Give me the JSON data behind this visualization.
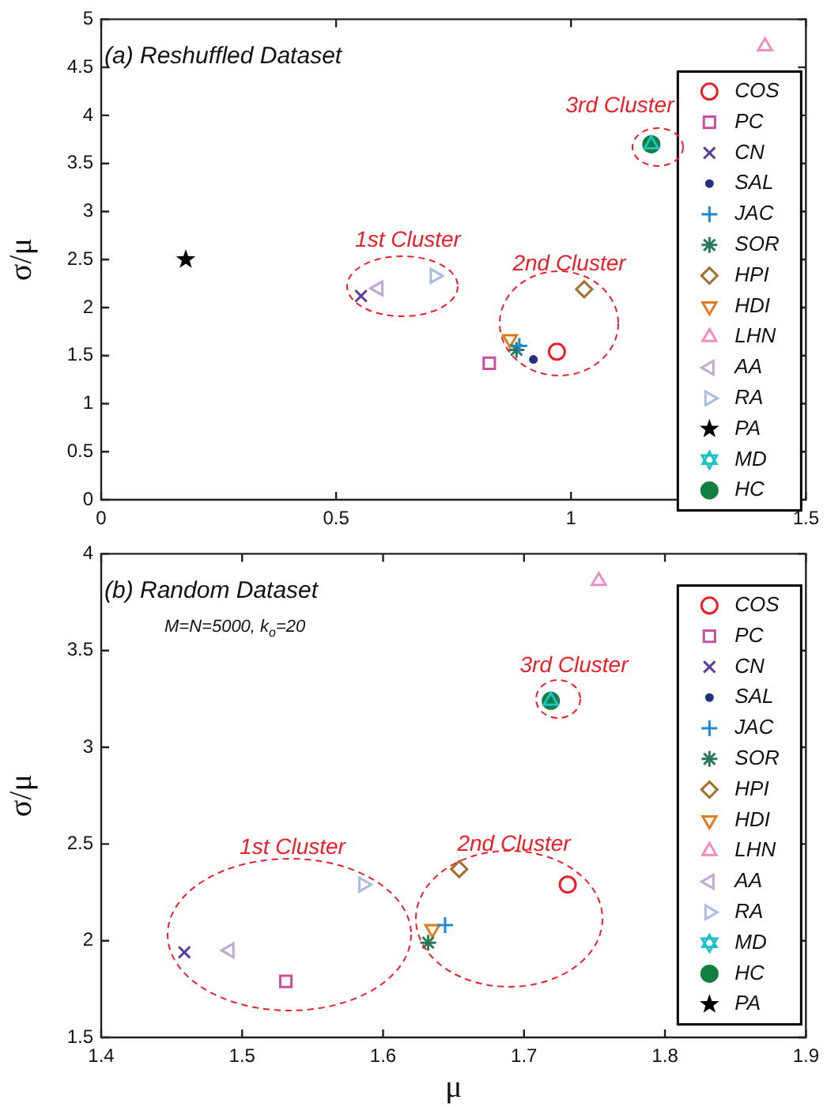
{
  "chart_data": [
    {
      "type": "scatter",
      "title": "(a) Reshuffled Dataset",
      "ylabel": "σ/μ",
      "xlim": [
        0,
        1.5
      ],
      "ylim": [
        0,
        5
      ],
      "xticks": [
        0,
        0.5,
        1,
        1.5
      ],
      "yticks": [
        0,
        0.5,
        1,
        1.5,
        2,
        2.5,
        3,
        3.5,
        4,
        4.5,
        5
      ],
      "grid": false,
      "legend": "right",
      "annotations": [
        "1st Cluster",
        "2nd Cluster",
        "3rd Cluster"
      ],
      "series": [
        {
          "name": "COS",
          "color": "#e8202a",
          "x": [
            0.97
          ],
          "values": [
            1.54
          ]
        },
        {
          "name": "PC",
          "color": "#c9509c",
          "x": [
            0.826
          ],
          "values": [
            1.42
          ]
        },
        {
          "name": "CN",
          "color": "#5c3a96",
          "x": [
            0.553
          ],
          "values": [
            2.12
          ]
        },
        {
          "name": "SAL",
          "color": "#23317a",
          "x": [
            0.92
          ],
          "values": [
            1.46
          ]
        },
        {
          "name": "JAC",
          "color": "#1e88d0",
          "x": [
            0.89
          ],
          "values": [
            1.6
          ]
        },
        {
          "name": "SOR",
          "color": "#2a7a5a",
          "x": [
            0.884
          ],
          "values": [
            1.56
          ]
        },
        {
          "name": "HPI",
          "color": "#a07030",
          "x": [
            1.028
          ],
          "values": [
            2.19
          ]
        },
        {
          "name": "HDI",
          "color": "#e07a20",
          "x": [
            0.87
          ],
          "values": [
            1.67
          ]
        },
        {
          "name": "LHN",
          "color": "#f08cc0",
          "x": [
            1.413
          ],
          "values": [
            4.72
          ]
        },
        {
          "name": "AA",
          "color": "#c0a8d8",
          "x": [
            0.59
          ],
          "values": [
            2.2
          ]
        },
        {
          "name": "RA",
          "color": "#a8bce0",
          "x": [
            0.71
          ],
          "values": [
            2.33
          ]
        },
        {
          "name": "PA",
          "color": "#000000",
          "x": [
            0.18
          ],
          "values": [
            2.5
          ]
        },
        {
          "name": "MD",
          "color": "#20c0c8",
          "x": [
            1.171
          ],
          "values": [
            3.7
          ]
        },
        {
          "name": "HC",
          "color": "#128040",
          "x": [
            1.171
          ],
          "values": [
            3.7
          ]
        }
      ]
    },
    {
      "type": "scatter",
      "title": "(b) Random Dataset",
      "xlabel": "μ",
      "ylabel": "σ/μ",
      "xlim": [
        1.4,
        1.9
      ],
      "ylim": [
        1.5,
        4
      ],
      "xticks": [
        1.4,
        1.5,
        1.6,
        1.7,
        1.8,
        1.9
      ],
      "yticks": [
        1.5,
        2,
        2.5,
        3,
        3.5,
        4
      ],
      "grid": false,
      "legend": "right",
      "annotations": [
        "M=N=5000, k$_{o}$=20",
        "1st Cluster",
        "2nd Cluster",
        "3rd Cluster"
      ],
      "series": [
        {
          "name": "COS",
          "color": "#e8202a",
          "x": [
            1.731
          ],
          "values": [
            2.29
          ]
        },
        {
          "name": "PC",
          "color": "#c9509c",
          "x": [
            1.531
          ],
          "values": [
            1.79
          ]
        },
        {
          "name": "CN",
          "color": "#5c3a96",
          "x": [
            1.459
          ],
          "values": [
            1.94
          ]
        },
        {
          "name": "SAL",
          "color": "#23317a",
          "x": [
            null
          ],
          "values": [
            null
          ]
        },
        {
          "name": "JAC",
          "color": "#1e88d0",
          "x": [
            1.644
          ],
          "values": [
            2.08
          ]
        },
        {
          "name": "SOR",
          "color": "#2a7a5a",
          "x": [
            1.632
          ],
          "values": [
            1.99
          ]
        },
        {
          "name": "HPI",
          "color": "#a07030",
          "x": [
            1.654
          ],
          "values": [
            2.37
          ]
        },
        {
          "name": "HDI",
          "color": "#e07a20",
          "x": [
            1.635
          ],
          "values": [
            2.06
          ]
        },
        {
          "name": "LHN",
          "color": "#f08cc0",
          "x": [
            1.753
          ],
          "values": [
            3.86
          ]
        },
        {
          "name": "AA",
          "color": "#c0a8d8",
          "x": [
            1.491
          ],
          "values": [
            1.95
          ]
        },
        {
          "name": "RA",
          "color": "#a8bce0",
          "x": [
            1.586
          ],
          "values": [
            2.29
          ]
        },
        {
          "name": "MD",
          "color": "#20c0c8",
          "x": [
            1.719
          ],
          "values": [
            3.24
          ]
        },
        {
          "name": "HC",
          "color": "#128040",
          "x": [
            1.719
          ],
          "values": [
            3.24
          ]
        },
        {
          "name": "PA",
          "color": "#000000",
          "x": [
            null
          ],
          "values": [
            null
          ]
        }
      ]
    }
  ]
}
